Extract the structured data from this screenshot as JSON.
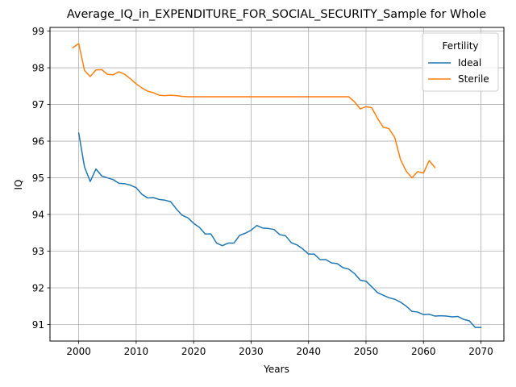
{
  "chart_data": {
    "type": "line",
    "title": "Average_IQ_in_EXPENDITURE_FOR_SOCIAL_SECURITY_Sample for Whole",
    "xlabel": "Years",
    "ylabel": "IQ",
    "xlim": [
      1995,
      2074
    ],
    "ylim": [
      90.55,
      99.1
    ],
    "xticks": [
      2000,
      2010,
      2020,
      2030,
      2040,
      2050,
      2060,
      2070
    ],
    "yticks": [
      91,
      92,
      93,
      94,
      95,
      96,
      97,
      98,
      99
    ],
    "grid": true,
    "legend": {
      "title": "Fertility",
      "position": "top-right"
    },
    "series": [
      {
        "name": "Ideal",
        "color": "#1f77b4",
        "x": [
          2000,
          2001,
          2002,
          2003,
          2004,
          2005,
          2006,
          2007,
          2008,
          2009,
          2010,
          2011,
          2012,
          2013,
          2014,
          2015,
          2016,
          2017,
          2018,
          2019,
          2020,
          2021,
          2022,
          2023,
          2024,
          2025,
          2026,
          2027,
          2028,
          2029,
          2030,
          2031,
          2032,
          2033,
          2034,
          2035,
          2036,
          2037,
          2038,
          2039,
          2040,
          2041,
          2042,
          2043,
          2044,
          2045,
          2046,
          2047,
          2048,
          2049,
          2050,
          2051,
          2052,
          2053,
          2054,
          2055,
          2056,
          2057,
          2058,
          2059,
          2060,
          2061,
          2062,
          2063,
          2064,
          2065,
          2066,
          2067,
          2068,
          2069,
          2070
        ],
        "y": [
          96.22,
          95.3,
          94.9,
          95.24,
          95.05,
          95.0,
          94.95,
          94.85,
          94.84,
          94.8,
          94.73,
          94.55,
          94.45,
          94.46,
          94.41,
          94.39,
          94.35,
          94.15,
          93.98,
          93.91,
          93.76,
          93.65,
          93.47,
          93.47,
          93.22,
          93.15,
          93.22,
          93.22,
          93.43,
          93.49,
          93.57,
          93.7,
          93.63,
          93.62,
          93.59,
          93.45,
          93.42,
          93.23,
          93.17,
          93.06,
          92.92,
          92.92,
          92.77,
          92.77,
          92.68,
          92.66,
          92.55,
          92.51,
          92.39,
          92.21,
          92.18,
          92.03,
          91.87,
          91.8,
          91.73,
          91.69,
          91.61,
          91.5,
          91.36,
          91.34,
          91.27,
          91.28,
          91.23,
          91.24,
          91.23,
          91.21,
          91.22,
          91.14,
          91.1,
          90.92,
          90.92
        ]
      },
      {
        "name": "Sterile",
        "color": "#ff7f0e",
        "x": [
          1999,
          2000,
          2001,
          2002,
          2003,
          2004,
          2005,
          2006,
          2007,
          2008,
          2009,
          2010,
          2011,
          2012,
          2013,
          2014,
          2015,
          2016,
          2017,
          2018,
          2019,
          2020,
          2021,
          2022,
          2023,
          2024,
          2025,
          2026,
          2027,
          2028,
          2029,
          2030,
          2031,
          2032,
          2033,
          2034,
          2035,
          2036,
          2037,
          2038,
          2039,
          2040,
          2041,
          2042,
          2043,
          2044,
          2045,
          2046,
          2047,
          2048,
          2049,
          2050,
          2051,
          2052,
          2053,
          2054,
          2055,
          2056,
          2057,
          2058,
          2059,
          2060,
          2061,
          2062
        ],
        "y": [
          98.55,
          98.66,
          97.93,
          97.76,
          97.94,
          97.95,
          97.82,
          97.81,
          97.89,
          97.82,
          97.7,
          97.56,
          97.45,
          97.36,
          97.32,
          97.25,
          97.24,
          97.25,
          97.24,
          97.22,
          97.21,
          97.21,
          97.21,
          97.21,
          97.21,
          97.21,
          97.21,
          97.21,
          97.21,
          97.21,
          97.21,
          97.21,
          97.21,
          97.21,
          97.21,
          97.21,
          97.21,
          97.21,
          97.21,
          97.21,
          97.21,
          97.21,
          97.21,
          97.21,
          97.21,
          97.21,
          97.21,
          97.21,
          97.21,
          97.07,
          96.88,
          96.94,
          96.91,
          96.62,
          96.38,
          96.34,
          96.1,
          95.5,
          95.18,
          95.0,
          95.17,
          95.13,
          95.47,
          95.28
        ]
      }
    ]
  }
}
